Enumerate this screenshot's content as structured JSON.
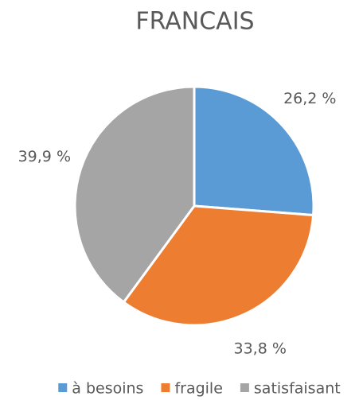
{
  "chart_data": {
    "type": "pie",
    "title": "FRANCAIS",
    "categories": [
      "à besoins",
      "fragile",
      "satisfaisant"
    ],
    "values": [
      26.2,
      33.8,
      39.9
    ],
    "value_labels": [
      "26,2 %",
      "33,8 %",
      "39,9 %"
    ],
    "colors": [
      "#5b9bd5",
      "#ed7d31",
      "#a5a5a5"
    ],
    "legend": "bottom"
  }
}
